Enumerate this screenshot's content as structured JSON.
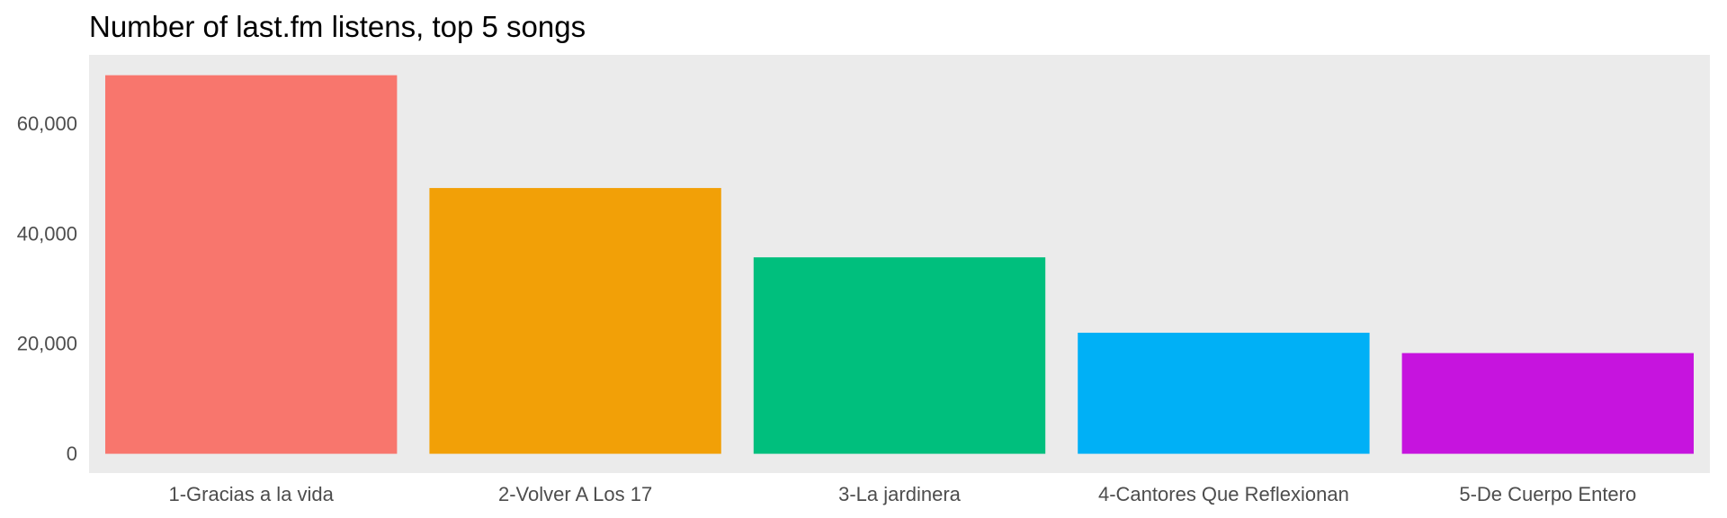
{
  "chart_data": {
    "type": "bar",
    "title": "Number of last.fm listens, top 5 songs",
    "xlabel": "",
    "ylabel": "",
    "categories": [
      "1-Gracias a la vida",
      "2-Volver A Los 17",
      "3-La jardinera",
      "4-Cantores Que Reflexionan",
      "5-De Cuerpo Entero"
    ],
    "values": [
      68800,
      48300,
      35700,
      22000,
      18300
    ],
    "colors": [
      "#F8766D",
      "#F2A007",
      "#00BF7D",
      "#00B0F6",
      "#C614DE"
    ],
    "ylim": [
      -3500,
      72500
    ],
    "yticks": [
      0,
      20000,
      40000,
      60000
    ],
    "ytick_labels": [
      "0",
      "20,000",
      "40,000",
      "60,000"
    ],
    "panel_background": "#EBEBEB",
    "grid": false,
    "legend": "none"
  }
}
